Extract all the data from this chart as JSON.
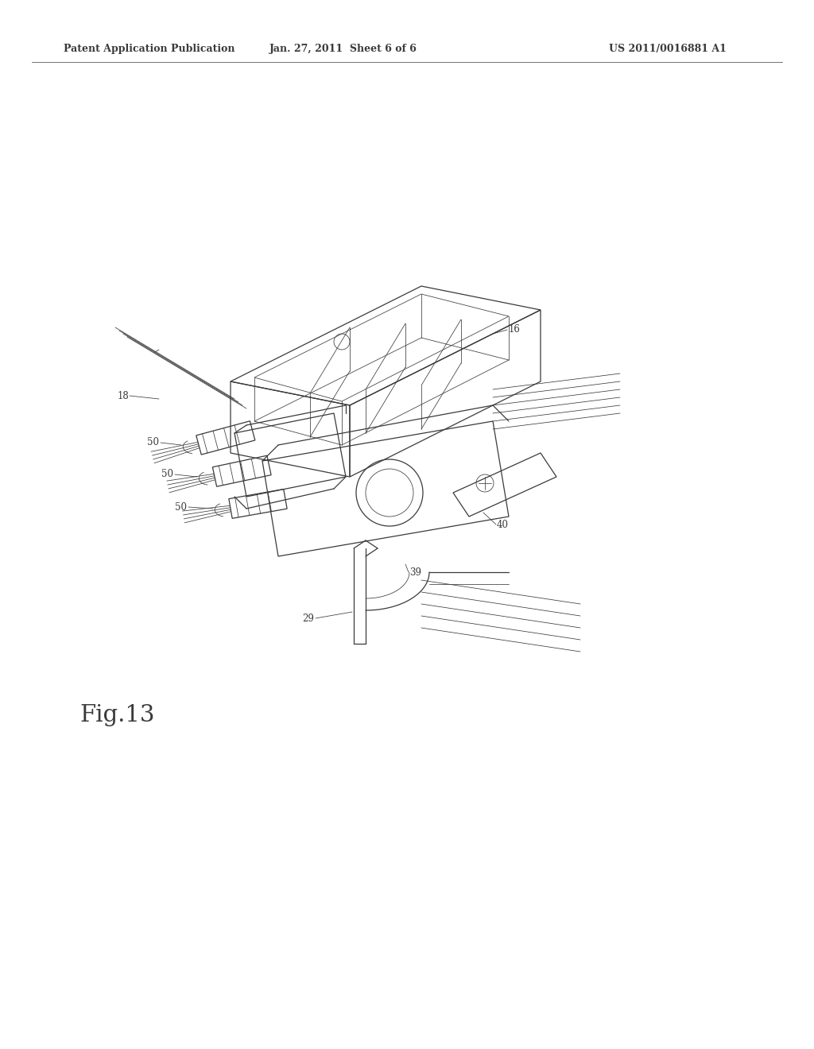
{
  "background_color": "#ffffff",
  "line_color": "#3a3a3a",
  "header_left": "Patent Application Publication",
  "header_center": "Jan. 27, 2011  Sheet 6 of 6",
  "header_right": "US 2011/0016881 A1",
  "fig_label": "Fig.13",
  "header_fontsize": 9,
  "fig_label_fontsize": 21,
  "label_fontsize": 8.5,
  "lw_main": 0.9,
  "lw_thin": 0.55,
  "lw_med": 0.75
}
